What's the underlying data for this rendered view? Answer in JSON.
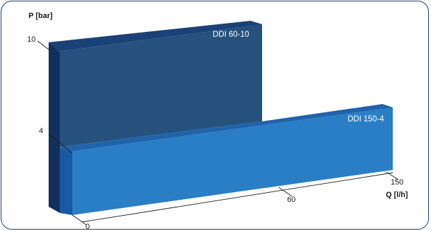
{
  "chart_data": {
    "type": "bar",
    "title": "",
    "ylabel": "P [bar]",
    "xlabel": "Q [l/h]",
    "yticks": [
      4,
      10
    ],
    "xticks": [
      0,
      60,
      150
    ],
    "series": [
      {
        "name": "DDI 60-10",
        "max_flow": 60,
        "max_pressure": 10
      },
      {
        "name": "DDI 150-4",
        "max_flow": 150,
        "max_pressure": 4
      }
    ],
    "colors": {
      "ddi_60_10": {
        "front": "#26517d",
        "top": "#1b4276",
        "side": "#12305f"
      },
      "ddi_150_4": {
        "front": "#2a7ec5",
        "top": "#1f63ad",
        "side": "#1859a3"
      },
      "frame": "#1d3f78"
    }
  }
}
